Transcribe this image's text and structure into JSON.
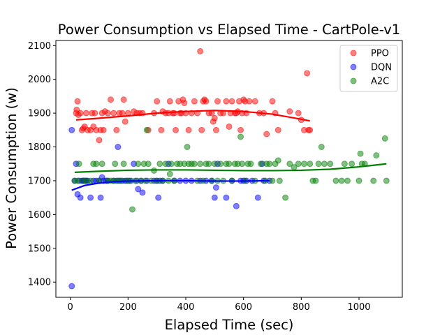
{
  "chart_data": {
    "type": "scatter",
    "title": "Power Consumption vs Elapsed Time - CartPole-v1",
    "xlabel": "Elapsed Time (sec)",
    "ylabel": "Power Consumption (w)",
    "xlim": [
      -50,
      1150
    ],
    "ylim": [
      1355,
      2115
    ],
    "xticks": [
      0,
      200,
      400,
      600,
      800,
      1000
    ],
    "yticks": [
      1400,
      1500,
      1600,
      1700,
      1800,
      1900,
      2000,
      2100
    ],
    "grid": false,
    "legend_position": "top-right",
    "series": [
      {
        "name": "PPO",
        "color": "#ff0000",
        "points": [
          [
            20,
            1900
          ],
          [
            22,
            1910
          ],
          [
            25,
            1935
          ],
          [
            28,
            1895
          ],
          [
            35,
            1900
          ],
          [
            40,
            1850
          ],
          [
            45,
            1855
          ],
          [
            50,
            1860
          ],
          [
            55,
            1900
          ],
          [
            60,
            1850
          ],
          [
            70,
            1850
          ],
          [
            75,
            1900
          ],
          [
            80,
            1860
          ],
          [
            85,
            1900
          ],
          [
            90,
            1850
          ],
          [
            100,
            1820
          ],
          [
            105,
            1850
          ],
          [
            110,
            1900
          ],
          [
            115,
            1850
          ],
          [
            120,
            1905
          ],
          [
            130,
            1900
          ],
          [
            140,
            1940
          ],
          [
            150,
            1900
          ],
          [
            160,
            1850
          ],
          [
            170,
            1900
          ],
          [
            180,
            1900
          ],
          [
            185,
            1940
          ],
          [
            190,
            1875
          ],
          [
            200,
            1900
          ],
          [
            220,
            1905
          ],
          [
            230,
            1900
          ],
          [
            240,
            1900
          ],
          [
            250,
            1900
          ],
          [
            270,
            1850
          ],
          [
            290,
            1900
          ],
          [
            300,
            1935
          ],
          [
            315,
            1850
          ],
          [
            320,
            1905
          ],
          [
            330,
            1900
          ],
          [
            340,
            1900
          ],
          [
            345,
            1935
          ],
          [
            355,
            1900
          ],
          [
            360,
            1900
          ],
          [
            365,
            1850
          ],
          [
            375,
            1935
          ],
          [
            380,
            1900
          ],
          [
            385,
            1900
          ],
          [
            390,
            1940
          ],
          [
            395,
            1930
          ],
          [
            400,
            1900
          ],
          [
            410,
            1850
          ],
          [
            420,
            1900
          ],
          [
            430,
            1935
          ],
          [
            440,
            1900
          ],
          [
            450,
            2083
          ],
          [
            455,
            1850
          ],
          [
            460,
            1935
          ],
          [
            465,
            1940
          ],
          [
            470,
            1935
          ],
          [
            480,
            1900
          ],
          [
            490,
            1900
          ],
          [
            495,
            1875
          ],
          [
            500,
            1885
          ],
          [
            505,
            1850
          ],
          [
            510,
            1935
          ],
          [
            520,
            1900
          ],
          [
            530,
            1900
          ],
          [
            540,
            1935
          ],
          [
            550,
            1860
          ],
          [
            555,
            1900
          ],
          [
            560,
            1935
          ],
          [
            570,
            1900
          ],
          [
            575,
            1900
          ],
          [
            580,
            1905
          ],
          [
            585,
            1935
          ],
          [
            590,
            1850
          ],
          [
            595,
            1900
          ],
          [
            600,
            1940
          ],
          [
            605,
            1935
          ],
          [
            610,
            1900
          ],
          [
            620,
            1935
          ],
          [
            640,
            1935
          ],
          [
            655,
            1900
          ],
          [
            670,
            1900
          ],
          [
            680,
            1838
          ],
          [
            700,
            1935
          ],
          [
            710,
            1900
          ],
          [
            720,
            1850
          ],
          [
            760,
            1905
          ],
          [
            790,
            1900
          ],
          [
            800,
            1880
          ],
          [
            810,
            1850
          ],
          [
            820,
            2018
          ],
          [
            825,
            1850
          ],
          [
            830,
            1850
          ]
        ],
        "trend": [
          [
            20,
            1880
          ],
          [
            100,
            1885
          ],
          [
            200,
            1892
          ],
          [
            300,
            1900
          ],
          [
            400,
            1905
          ],
          [
            500,
            1908
          ],
          [
            600,
            1905
          ],
          [
            700,
            1897
          ],
          [
            800,
            1882
          ],
          [
            830,
            1877
          ]
        ]
      },
      {
        "name": "DQN",
        "color": "#0000ff",
        "points": [
          [
            5,
            1850
          ],
          [
            5,
            1388
          ],
          [
            15,
            1700
          ],
          [
            20,
            1750
          ],
          [
            25,
            1660
          ],
          [
            30,
            1700
          ],
          [
            35,
            1650
          ],
          [
            40,
            1700
          ],
          [
            45,
            1700
          ],
          [
            50,
            1700
          ],
          [
            55,
            1700
          ],
          [
            60,
            1700
          ],
          [
            70,
            1650
          ],
          [
            80,
            1700
          ],
          [
            90,
            1700
          ],
          [
            100,
            1700
          ],
          [
            105,
            1650
          ],
          [
            110,
            1710
          ],
          [
            115,
            1700
          ],
          [
            125,
            1700
          ],
          [
            130,
            1700
          ],
          [
            150,
            1700
          ],
          [
            160,
            1700
          ],
          [
            165,
            1800
          ],
          [
            170,
            1700
          ],
          [
            180,
            1700
          ],
          [
            190,
            1700
          ],
          [
            200,
            1700
          ],
          [
            210,
            1700
          ],
          [
            220,
            1750
          ],
          [
            230,
            1700
          ],
          [
            235,
            1675
          ],
          [
            245,
            1700
          ],
          [
            250,
            1665
          ],
          [
            265,
            1700
          ],
          [
            290,
            1700
          ],
          [
            300,
            1700
          ],
          [
            305,
            1650
          ],
          [
            310,
            1700
          ],
          [
            320,
            1700
          ],
          [
            340,
            1750
          ],
          [
            360,
            1700
          ],
          [
            380,
            1700
          ],
          [
            400,
            1700
          ],
          [
            420,
            1700
          ],
          [
            450,
            1700
          ],
          [
            470,
            1700
          ],
          [
            490,
            1700
          ],
          [
            500,
            1650
          ],
          [
            505,
            1680
          ],
          [
            510,
            1750
          ],
          [
            540,
            1650
          ],
          [
            560,
            1700
          ],
          [
            575,
            1625
          ],
          [
            590,
            1700
          ],
          [
            600,
            1700
          ],
          [
            610,
            1700
          ],
          [
            630,
            1700
          ],
          [
            650,
            1650
          ],
          [
            665,
            1750
          ],
          [
            670,
            1700
          ],
          [
            690,
            1700
          ]
        ],
        "trend": [
          [
            5,
            1672
          ],
          [
            50,
            1686
          ],
          [
            100,
            1693
          ],
          [
            150,
            1697
          ],
          [
            200,
            1699
          ],
          [
            300,
            1700
          ],
          [
            400,
            1700
          ],
          [
            500,
            1699
          ],
          [
            600,
            1699
          ],
          [
            690,
            1700
          ]
        ]
      },
      {
        "name": "A2C",
        "color": "#008000",
        "points": [
          [
            15,
            1700
          ],
          [
            25,
            1700
          ],
          [
            30,
            1750
          ],
          [
            45,
            1700
          ],
          [
            55,
            1700
          ],
          [
            70,
            1700
          ],
          [
            80,
            1750
          ],
          [
            90,
            1750
          ],
          [
            100,
            1700
          ],
          [
            110,
            1750
          ],
          [
            130,
            1700
          ],
          [
            140,
            1700
          ],
          [
            150,
            1700
          ],
          [
            155,
            1750
          ],
          [
            165,
            1700
          ],
          [
            175,
            1700
          ],
          [
            185,
            1750
          ],
          [
            195,
            1700
          ],
          [
            205,
            1700
          ],
          [
            215,
            1615
          ],
          [
            225,
            1700
          ],
          [
            235,
            1750
          ],
          [
            245,
            1700
          ],
          [
            255,
            1750
          ],
          [
            260,
            1700
          ],
          [
            265,
            1850
          ],
          [
            270,
            1750
          ],
          [
            280,
            1700
          ],
          [
            290,
            1730
          ],
          [
            300,
            1700
          ],
          [
            310,
            1750
          ],
          [
            320,
            1700
          ],
          [
            330,
            1750
          ],
          [
            340,
            1700
          ],
          [
            345,
            1720
          ],
          [
            350,
            1750
          ],
          [
            360,
            1700
          ],
          [
            370,
            1750
          ],
          [
            380,
            1750
          ],
          [
            395,
            1750
          ],
          [
            405,
            1800
          ],
          [
            410,
            1750
          ],
          [
            420,
            1750
          ],
          [
            430,
            1750
          ],
          [
            440,
            1700
          ],
          [
            450,
            1750
          ],
          [
            460,
            1700
          ],
          [
            470,
            1750
          ],
          [
            480,
            1750
          ],
          [
            490,
            1700
          ],
          [
            500,
            1750
          ],
          [
            510,
            1700
          ],
          [
            520,
            1750
          ],
          [
            530,
            1700
          ],
          [
            540,
            1750
          ],
          [
            550,
            1750
          ],
          [
            560,
            1700
          ],
          [
            570,
            1750
          ],
          [
            580,
            1750
          ],
          [
            590,
            1830
          ],
          [
            595,
            1750
          ],
          [
            605,
            1700
          ],
          [
            615,
            1750
          ],
          [
            625,
            1750
          ],
          [
            640,
            1700
          ],
          [
            660,
            1750
          ],
          [
            675,
            1700
          ],
          [
            680,
            1750
          ],
          [
            690,
            1750
          ],
          [
            700,
            1700
          ],
          [
            710,
            1750
          ],
          [
            720,
            1760
          ],
          [
            725,
            1700
          ],
          [
            745,
            1650
          ],
          [
            760,
            1750
          ],
          [
            775,
            1740
          ],
          [
            790,
            1750
          ],
          [
            810,
            1750
          ],
          [
            830,
            1750
          ],
          [
            840,
            1700
          ],
          [
            850,
            1700
          ],
          [
            860,
            1750
          ],
          [
            870,
            1800
          ],
          [
            880,
            1750
          ],
          [
            900,
            1750
          ],
          [
            920,
            1700
          ],
          [
            940,
            1700
          ],
          [
            950,
            1750
          ],
          [
            960,
            1700
          ],
          [
            975,
            1750
          ],
          [
            1000,
            1700
          ],
          [
            1005,
            1780
          ],
          [
            1010,
            1750
          ],
          [
            1020,
            1750
          ],
          [
            1050,
            1700
          ],
          [
            1060,
            1775
          ],
          [
            1090,
            1825
          ],
          [
            1095,
            1700
          ]
        ],
        "trend": [
          [
            15,
            1725
          ],
          [
            100,
            1728
          ],
          [
            200,
            1731
          ],
          [
            300,
            1732
          ],
          [
            400,
            1732
          ],
          [
            500,
            1731
          ],
          [
            600,
            1730
          ],
          [
            700,
            1730
          ],
          [
            800,
            1731
          ],
          [
            900,
            1734
          ],
          [
            1000,
            1741
          ],
          [
            1095,
            1750
          ]
        ]
      }
    ]
  }
}
